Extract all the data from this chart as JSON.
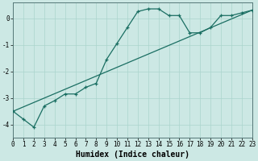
{
  "xlabel": "Humidex (Indice chaleur)",
  "ylabel": "",
  "bg_color": "#cce8e4",
  "grid_color": "#aad4cc",
  "line_color": "#1a6e62",
  "x_data": [
    0,
    1,
    2,
    3,
    4,
    5,
    6,
    7,
    8,
    9,
    10,
    11,
    12,
    13,
    14,
    15,
    16,
    17,
    18,
    19,
    20,
    21,
    22,
    23
  ],
  "y_curve": [
    -3.5,
    -3.8,
    -4.1,
    -3.3,
    -3.1,
    -2.85,
    -2.85,
    -2.6,
    -2.45,
    -1.55,
    -0.95,
    -0.35,
    0.25,
    0.35,
    0.35,
    0.1,
    0.1,
    -0.55,
    -0.55,
    -0.35,
    0.1,
    0.1,
    0.2,
    0.3
  ],
  "xlim": [
    0,
    23
  ],
  "ylim": [
    -4.5,
    0.6
  ],
  "yticks": [
    0,
    -1,
    -2,
    -3,
    -4
  ],
  "xticks": [
    0,
    1,
    2,
    3,
    4,
    5,
    6,
    7,
    8,
    9,
    10,
    11,
    12,
    13,
    14,
    15,
    16,
    17,
    18,
    19,
    20,
    21,
    22,
    23
  ],
  "axis_fontsize": 6.5,
  "tick_fontsize": 5.5,
  "xlabel_fontsize": 7
}
